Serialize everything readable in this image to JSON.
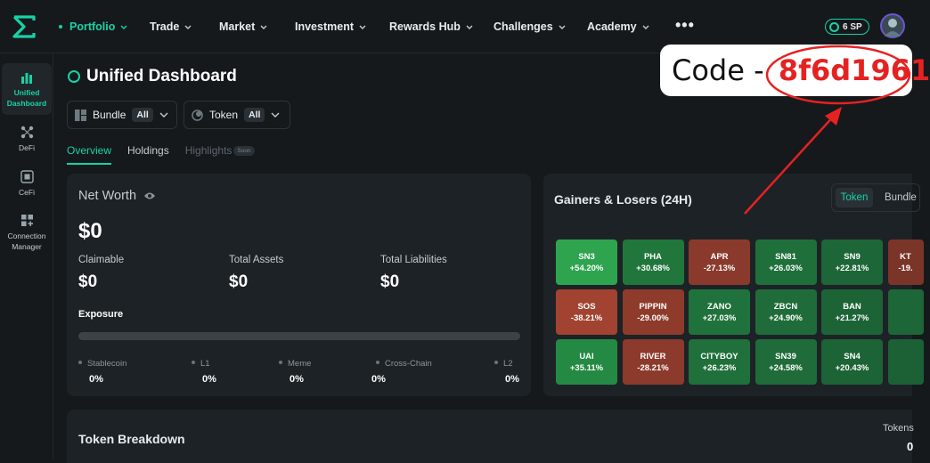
{
  "nav": {
    "items": [
      {
        "label": "Portfolio",
        "active": true
      },
      {
        "label": "Trade"
      },
      {
        "label": "Market"
      },
      {
        "label": "Investment"
      },
      {
        "label": "Rewards Hub"
      },
      {
        "label": "Challenges"
      },
      {
        "label": "Academy"
      }
    ],
    "more": "•••",
    "sp_badge": "6 SP"
  },
  "sidebar": {
    "items": [
      {
        "label": "Unified Dashboard",
        "icon": "bar-chart-icon",
        "active": true
      },
      {
        "label": "DeFi",
        "icon": "defi-icon"
      },
      {
        "label": "CeFi",
        "icon": "cefi-icon"
      },
      {
        "label": "Connection Manager",
        "icon": "connection-icon"
      }
    ]
  },
  "dashboard": {
    "title": "Unified Dashboard",
    "filters": [
      {
        "label": "Bundle",
        "value": "All"
      },
      {
        "label": "Token",
        "value": "All"
      }
    ],
    "tabs": [
      {
        "label": "Overview",
        "active": true
      },
      {
        "label": "Holdings"
      },
      {
        "label": "Highlights",
        "badge": "Soon"
      }
    ]
  },
  "net_worth": {
    "title": "Net Worth",
    "value": "$0",
    "claimable_label": "Claimable",
    "claimable_value": "$0",
    "total_assets_label": "Total Assets",
    "total_assets_value": "$0",
    "total_liabilities_label": "Total Liabilities",
    "total_liabilities_value": "$0",
    "exposure_label": "Exposure",
    "exposure_items": [
      {
        "label": "Stablecoin",
        "value": "0%"
      },
      {
        "label": "L1",
        "value": "0%"
      },
      {
        "label": "Meme",
        "value": "0%"
      },
      {
        "label": "Cross-Chain",
        "value": "0%"
      },
      {
        "label": "L2",
        "value": "0%"
      }
    ]
  },
  "gainers": {
    "title": "Gainers & Losers (24H)",
    "toggle": [
      "Token",
      "Bundle"
    ],
    "tiles": [
      {
        "name": "SN3",
        "change": "+54.20%",
        "color": "#2ea44f"
      },
      {
        "name": "PHA",
        "change": "+30.68%",
        "color": "#21763c"
      },
      {
        "name": "APR",
        "change": "-27.13%",
        "color": "#8a3a2c"
      },
      {
        "name": "SN81",
        "change": "+26.03%",
        "color": "#1f6f3b"
      },
      {
        "name": "SN9",
        "change": "+22.81%",
        "color": "#1d6637"
      },
      {
        "name": "KT",
        "change": "-19.",
        "color": "#7a3528"
      },
      {
        "name": "SOS",
        "change": "-38.21%",
        "color": "#a14330"
      },
      {
        "name": "PIPPIN",
        "change": "-29.00%",
        "color": "#8e3b2c"
      },
      {
        "name": "ZANO",
        "change": "+27.03%",
        "color": "#20723c"
      },
      {
        "name": "ZBCN",
        "change": "+24.90%",
        "color": "#1f6c3a"
      },
      {
        "name": "BAN",
        "change": "+21.27%",
        "color": "#1c6436"
      },
      {
        "name": "",
        "change": "",
        "color": "#1d6637"
      },
      {
        "name": "UAI",
        "change": "+35.11%",
        "color": "#248a43"
      },
      {
        "name": "RIVER",
        "change": "-28.21%",
        "color": "#8c3a2c"
      },
      {
        "name": "CITYBOY",
        "change": "+26.23%",
        "color": "#1f703b"
      },
      {
        "name": "SN39",
        "change": "+24.58%",
        "color": "#1f6b3a"
      },
      {
        "name": "SN4",
        "change": "+20.43%",
        "color": "#1c6336"
      },
      {
        "name": "",
        "change": "",
        "color": "#1b6135"
      }
    ]
  },
  "token_breakdown": {
    "title": "Token Breakdown",
    "tokens_label": "Tokens",
    "tokens_value": "0"
  },
  "annotation": {
    "prefix": "Code - ",
    "code": "8f6d1961"
  },
  "colors": {
    "accent": "#18d2a6",
    "annotation_red": "#e52222"
  }
}
